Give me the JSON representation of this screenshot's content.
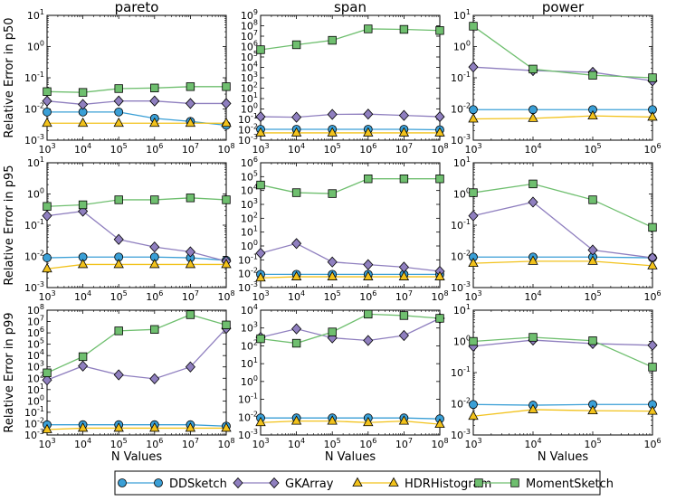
{
  "figure": {
    "legend_placement": "bottom-center",
    "columns": [
      "pareto",
      "span",
      "power"
    ],
    "row_ylabels": [
      "Relative Error in p50",
      "Relative Error in p95",
      "Relative Error in p99"
    ],
    "xlabel": "N Values"
  },
  "series_style": [
    {
      "name": "DDSketch",
      "color": "#3a9fd6",
      "marker": "circle"
    },
    {
      "name": "GKArray",
      "color": "#8f7fbf",
      "marker": "diamond"
    },
    {
      "name": "HDRHistogram",
      "color": "#f2c21b",
      "marker": "triangle"
    },
    {
      "name": "MomentSketch",
      "color": "#6fbf6f",
      "marker": "square"
    }
  ],
  "chart_data": [
    {
      "type": "line",
      "title": "pareto",
      "ylabel": "Relative Error in p50",
      "xlabel": "",
      "x": [
        3,
        4,
        5,
        6,
        7,
        8
      ],
      "xticks": [
        3,
        4,
        5,
        6,
        7,
        8
      ],
      "ylim": [
        -3,
        1
      ],
      "yticks": [
        -3,
        -2,
        -1,
        0,
        1
      ],
      "series": [
        {
          "name": "DDSketch",
          "values": [
            0.008,
            0.008,
            0.008,
            0.005,
            0.004,
            0.003
          ]
        },
        {
          "name": "GKArray",
          "values": [
            0.018,
            0.014,
            0.018,
            0.018,
            0.015,
            0.015
          ]
        },
        {
          "name": "HDRHistogram",
          "values": [
            0.0035,
            0.0035,
            0.0035,
            0.0035,
            0.0035,
            0.0035
          ]
        },
        {
          "name": "MomentSketch",
          "values": [
            0.036,
            0.034,
            0.045,
            0.047,
            0.052,
            0.052
          ]
        }
      ]
    },
    {
      "type": "line",
      "title": "span",
      "ylabel": "",
      "xlabel": "",
      "x": [
        3,
        4,
        5,
        6,
        7,
        8
      ],
      "xticks": [
        3,
        4,
        5,
        6,
        7,
        8
      ],
      "ylim": [
        -3,
        9
      ],
      "yticks": [
        -3,
        -2,
        -1,
        0,
        1,
        2,
        3,
        4,
        5,
        6,
        7,
        8,
        9
      ],
      "series": [
        {
          "name": "DDSketch",
          "values": [
            0.011,
            0.011,
            0.011,
            0.011,
            0.011,
            0.01
          ]
        },
        {
          "name": "GKArray",
          "values": [
            0.18,
            0.16,
            0.3,
            0.32,
            0.24,
            0.18
          ]
        },
        {
          "name": "HDRHistogram",
          "values": [
            0.005,
            0.005,
            0.005,
            0.005,
            0.005,
            0.005
          ]
        },
        {
          "name": "MomentSketch",
          "values": [
            500000,
            1500000,
            4000000,
            50000000,
            45000000,
            35000000
          ]
        }
      ]
    },
    {
      "type": "line",
      "title": "power",
      "ylabel": "",
      "xlabel": "",
      "x": [
        3,
        4,
        5,
        6
      ],
      "xticks": [
        3,
        4,
        5,
        6
      ],
      "ylim": [
        -3,
        1
      ],
      "yticks": [
        -3,
        -2,
        -1,
        0,
        1
      ],
      "series": [
        {
          "name": "DDSketch",
          "values": [
            0.0095,
            0.0095,
            0.0095,
            0.0095
          ]
        },
        {
          "name": "GKArray",
          "values": [
            0.22,
            0.17,
            0.15,
            0.08
          ]
        },
        {
          "name": "HDRHistogram",
          "values": [
            0.0048,
            0.005,
            0.006,
            0.0055
          ]
        },
        {
          "name": "MomentSketch",
          "values": [
            4.5,
            0.19,
            0.12,
            0.1
          ]
        }
      ]
    },
    {
      "type": "line",
      "title": "",
      "ylabel": "Relative Error in p95",
      "xlabel": "",
      "x": [
        3,
        4,
        5,
        6,
        7,
        8
      ],
      "xticks": [
        3,
        4,
        5,
        6,
        7,
        8
      ],
      "ylim": [
        -3,
        1
      ],
      "yticks": [
        -3,
        -2,
        -1,
        0,
        1
      ],
      "series": [
        {
          "name": "DDSketch",
          "values": [
            0.009,
            0.0095,
            0.0095,
            0.0095,
            0.009,
            0.0075
          ]
        },
        {
          "name": "GKArray",
          "values": [
            0.2,
            0.28,
            0.035,
            0.02,
            0.014,
            0.007
          ]
        },
        {
          "name": "HDRHistogram",
          "values": [
            0.004,
            0.0055,
            0.0055,
            0.0055,
            0.0055,
            0.0055
          ]
        },
        {
          "name": "MomentSketch",
          "values": [
            0.4,
            0.45,
            0.65,
            0.65,
            0.75,
            0.65
          ]
        }
      ]
    },
    {
      "type": "line",
      "title": "",
      "ylabel": "",
      "xlabel": "",
      "x": [
        3,
        4,
        5,
        6,
        7,
        8
      ],
      "xticks": [
        3,
        4,
        5,
        6,
        7,
        8
      ],
      "ylim": [
        -3,
        6
      ],
      "yticks": [
        -3,
        -2,
        -1,
        0,
        1,
        2,
        3,
        4,
        5,
        6
      ],
      "series": [
        {
          "name": "DDSketch",
          "values": [
            0.009,
            0.009,
            0.009,
            0.009,
            0.009,
            0.009
          ]
        },
        {
          "name": "GKArray",
          "values": [
            0.3,
            1.5,
            0.07,
            0.045,
            0.03,
            0.015
          ]
        },
        {
          "name": "HDRHistogram",
          "values": [
            0.005,
            0.006,
            0.006,
            0.006,
            0.006,
            0.006
          ]
        },
        {
          "name": "MomentSketch",
          "values": [
            25000,
            7000,
            6000,
            70000,
            70000,
            70000
          ]
        }
      ]
    },
    {
      "type": "line",
      "title": "",
      "ylabel": "",
      "xlabel": "",
      "x": [
        3,
        4,
        5,
        6
      ],
      "xticks": [
        3,
        4,
        5,
        6
      ],
      "ylim": [
        -3,
        1
      ],
      "yticks": [
        -3,
        -2,
        -1,
        0,
        1
      ],
      "series": [
        {
          "name": "DDSketch",
          "values": [
            0.0095,
            0.0095,
            0.0095,
            0.009
          ]
        },
        {
          "name": "GKArray",
          "values": [
            0.2,
            0.55,
            0.016,
            0.009
          ]
        },
        {
          "name": "HDRHistogram",
          "values": [
            0.006,
            0.007,
            0.007,
            0.005
          ]
        },
        {
          "name": "MomentSketch",
          "values": [
            1.1,
            2.1,
            0.65,
            0.085
          ]
        }
      ]
    },
    {
      "type": "line",
      "title": "",
      "ylabel": "Relative Error in p99",
      "xlabel": "N Values",
      "x": [
        3,
        4,
        5,
        6,
        7,
        8
      ],
      "xticks": [
        3,
        4,
        5,
        6,
        7,
        8
      ],
      "ylim": [
        -3,
        8
      ],
      "yticks": [
        -3,
        -2,
        -1,
        0,
        1,
        2,
        3,
        4,
        5,
        6,
        7,
        8
      ],
      "series": [
        {
          "name": "DDSketch",
          "values": [
            0.008,
            0.008,
            0.008,
            0.008,
            0.008,
            0.006
          ]
        },
        {
          "name": "GKArray",
          "values": [
            70,
            1200,
            200,
            90,
            1000,
            2500000
          ]
        },
        {
          "name": "HDRHistogram",
          "values": [
            0.003,
            0.004,
            0.004,
            0.004,
            0.004,
            0.004
          ]
        },
        {
          "name": "MomentSketch",
          "values": [
            300,
            8000,
            1500000,
            2000000,
            40000000,
            5000000
          ]
        }
      ]
    },
    {
      "type": "line",
      "title": "",
      "ylabel": "",
      "xlabel": "N Values",
      "x": [
        3,
        4,
        5,
        6,
        7,
        8
      ],
      "xticks": [
        3,
        4,
        5,
        6,
        7,
        8
      ],
      "ylim": [
        -3,
        4
      ],
      "yticks": [
        -3,
        -2,
        -1,
        0,
        1,
        2,
        3,
        4
      ],
      "series": [
        {
          "name": "DDSketch",
          "values": [
            0.009,
            0.009,
            0.009,
            0.009,
            0.009,
            0.008
          ]
        },
        {
          "name": "GKArray",
          "values": [
            300,
            900,
            280,
            200,
            380,
            3500
          ]
        },
        {
          "name": "HDRHistogram",
          "values": [
            0.005,
            0.006,
            0.006,
            0.005,
            0.006,
            0.004
          ]
        },
        {
          "name": "MomentSketch",
          "values": [
            250,
            140,
            600,
            6000,
            5000,
            3500
          ]
        }
      ]
    },
    {
      "type": "line",
      "title": "",
      "ylabel": "",
      "xlabel": "N Values",
      "x": [
        3,
        4,
        5,
        6
      ],
      "xticks": [
        3,
        4,
        5,
        6
      ],
      "ylim": [
        -3,
        1
      ],
      "yticks": [
        -3,
        -2,
        -1,
        0,
        1
      ],
      "series": [
        {
          "name": "DDSketch",
          "values": [
            0.0095,
            0.009,
            0.0095,
            0.0095
          ]
        },
        {
          "name": "GKArray",
          "values": [
            0.7,
            1.1,
            0.85,
            0.75
          ]
        },
        {
          "name": "HDRHistogram",
          "values": [
            0.004,
            0.0065,
            0.006,
            0.0058
          ]
        },
        {
          "name": "MomentSketch",
          "values": [
            1.0,
            1.35,
            1.05,
            0.15
          ]
        }
      ]
    }
  ]
}
